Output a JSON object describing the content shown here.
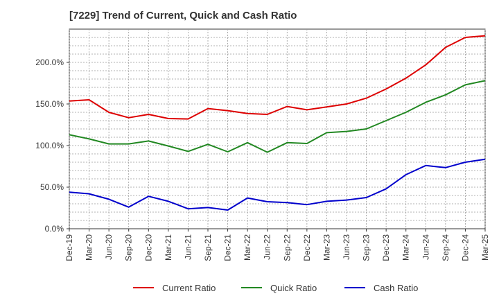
{
  "chart_data": {
    "type": "line",
    "title": "[7229]  Trend of Current, Quick and Cash Ratio",
    "xlabel": "",
    "ylabel": "",
    "ylim": [
      0,
      240
    ],
    "y_ticks": [
      {
        "value": 0,
        "label": "0.0%"
      },
      {
        "value": 50,
        "label": "50.0%"
      },
      {
        "value": 100,
        "label": "100.0%"
      },
      {
        "value": 150,
        "label": "150.0%"
      },
      {
        "value": 200,
        "label": "200.0%"
      }
    ],
    "x_tick_labels": [
      "Dec-19",
      "Mar-20",
      "Jun-20",
      "Sep-20",
      "Dec-20",
      "Mar-21",
      "Jun-21",
      "Sep-21",
      "Dec-21",
      "Mar-22",
      "Jun-22",
      "Sep-22",
      "Dec-22",
      "Mar-23",
      "Jun-23",
      "Sep-23",
      "Dec-23",
      "Mar-24",
      "Jun-24",
      "Sep-24",
      "Dec-24",
      "Mar-25"
    ],
    "x_count": 22,
    "legend_position": "bottom",
    "grid": true,
    "series": [
      {
        "name": "Current Ratio",
        "color": "#dd0000",
        "values": [
          153.5,
          155,
          140,
          133.5,
          137.5,
          132.5,
          132,
          144.5,
          142,
          138.5,
          137.5,
          147,
          143,
          146.5,
          150,
          157,
          168,
          181,
          197,
          218,
          230,
          232
        ]
      },
      {
        "name": "Quick Ratio",
        "color": "#228822",
        "values": [
          113,
          108,
          102,
          102,
          105.5,
          99.5,
          93,
          101.5,
          92.5,
          103.5,
          92,
          103.5,
          102.5,
          115.5,
          117,
          120,
          130,
          140,
          152,
          161,
          173,
          178
        ]
      },
      {
        "name": "Cash Ratio",
        "color": "#0000cc",
        "values": [
          44,
          42,
          35.5,
          26,
          39,
          33,
          24,
          25.5,
          22.5,
          37,
          32.5,
          31.5,
          29,
          33,
          34.5,
          37.5,
          48,
          65,
          76,
          73.5,
          80,
          83.5
        ]
      }
    ]
  }
}
